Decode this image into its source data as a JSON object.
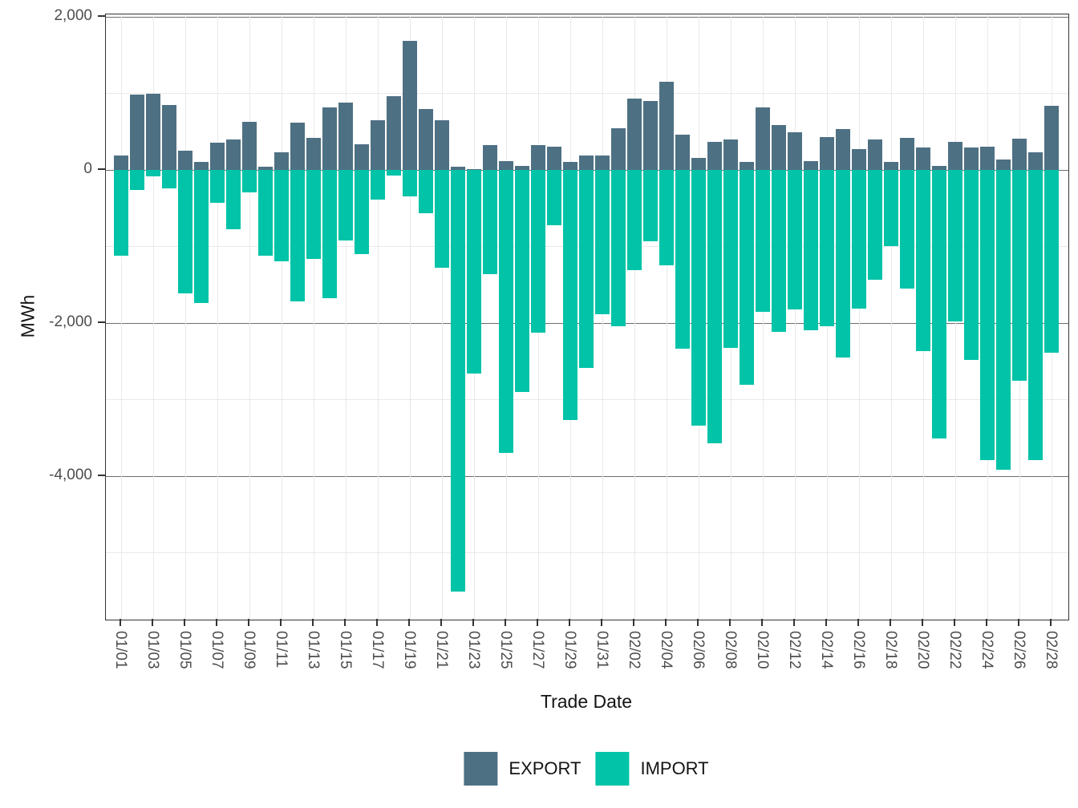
{
  "chart_data": {
    "type": "bar",
    "title": "",
    "xlabel": "Trade Date",
    "ylabel": "MWh",
    "legend_position": "bottom",
    "grid": true,
    "ylim": [
      -5874,
      2032
    ],
    "y_major_ticks": [
      2000,
      0,
      -2000,
      -4000
    ],
    "y_major_tick_labels": [
      "2,000",
      "0",
      "-2,000",
      "-4,000"
    ],
    "y_minor_gridlines": [
      1000,
      -1000,
      -3000,
      -5000
    ],
    "x_tick_every": 2,
    "categories": [
      "01/01",
      "01/02",
      "01/03",
      "01/04",
      "01/05",
      "01/06",
      "01/07",
      "01/08",
      "01/09",
      "01/10",
      "01/11",
      "01/12",
      "01/13",
      "01/14",
      "01/15",
      "01/16",
      "01/17",
      "01/18",
      "01/19",
      "01/20",
      "01/21",
      "01/22",
      "01/23",
      "01/24",
      "01/25",
      "01/26",
      "01/27",
      "01/28",
      "01/29",
      "01/30",
      "01/31",
      "02/01",
      "02/02",
      "02/03",
      "02/04",
      "02/05",
      "02/06",
      "02/07",
      "02/08",
      "02/09",
      "02/10",
      "02/11",
      "02/12",
      "02/13",
      "02/14",
      "02/15",
      "02/16",
      "02/17",
      "02/18",
      "02/19",
      "02/20",
      "02/21",
      "02/22",
      "02/23",
      "02/24",
      "02/25",
      "02/26",
      "02/27",
      "02/28"
    ],
    "series": [
      {
        "name": "EXPORT",
        "color": "#4e7083",
        "values": [
          185,
          980,
          1000,
          845,
          255,
          105,
          355,
          400,
          630,
          40,
          235,
          615,
          420,
          820,
          885,
          335,
          645,
          960,
          1690,
          800,
          645,
          40,
          10,
          325,
          120,
          50,
          320,
          300,
          105,
          185,
          185,
          540,
          935,
          900,
          1155,
          460,
          155,
          365,
          395,
          110,
          820,
          590,
          495,
          120,
          435,
          530,
          275,
          395,
          110,
          420,
          290,
          50,
          370,
          290,
          305,
          140,
          410,
          230,
          835
        ]
      },
      {
        "name": "IMPORT",
        "color": "#01c3a8",
        "values": [
          -1120,
          -260,
          -85,
          -245,
          -1615,
          -1740,
          -425,
          -775,
          -295,
          -1115,
          -1190,
          -1720,
          -1165,
          -1670,
          -925,
          -1095,
          -385,
          -75,
          -340,
          -570,
          -1280,
          -5505,
          -2655,
          -1365,
          -3695,
          -2900,
          -2125,
          -720,
          -3265,
          -2585,
          -1880,
          -2045,
          -1305,
          -930,
          -1245,
          -2335,
          -3335,
          -3570,
          -2325,
          -2810,
          -1855,
          -2110,
          -1820,
          -2090,
          -2040,
          -2455,
          -1810,
          -1430,
          -995,
          -1550,
          -2370,
          -3510,
          -1975,
          -2480,
          -3795,
          -3915,
          -2750,
          -3790,
          -2390
        ]
      }
    ]
  },
  "layout_colors": {
    "major_grid": "#6e6e6e",
    "minor_grid": "#e9e9e9",
    "vertical_grid": "#e9e9e9"
  }
}
